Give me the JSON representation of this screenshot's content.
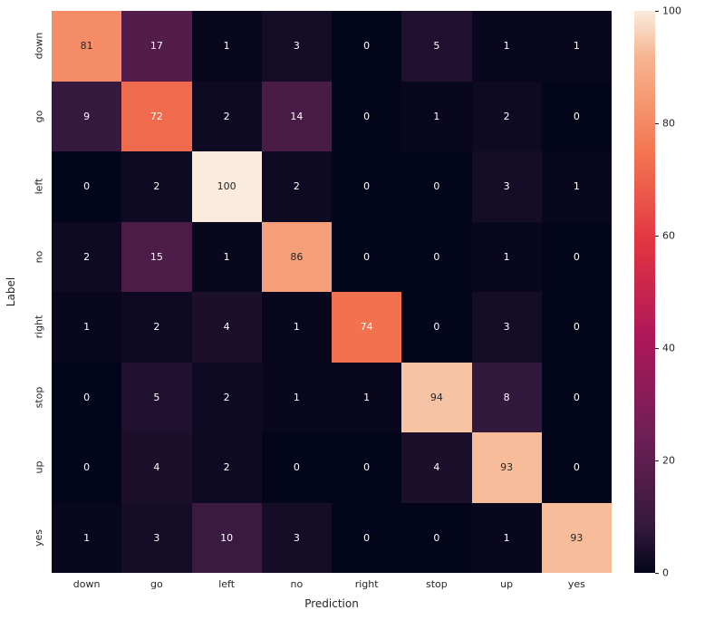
{
  "chart_data": {
    "type": "heatmap",
    "title": "",
    "xlabel": "Prediction",
    "ylabel": "Label",
    "categories_x": [
      "down",
      "go",
      "left",
      "no",
      "right",
      "stop",
      "up",
      "yes"
    ],
    "categories_y": [
      "down",
      "go",
      "left",
      "no",
      "right",
      "stop",
      "up",
      "yes"
    ],
    "values": [
      [
        81,
        17,
        1,
        3,
        0,
        5,
        1,
        1
      ],
      [
        9,
        72,
        2,
        14,
        0,
        1,
        2,
        0
      ],
      [
        0,
        2,
        100,
        2,
        0,
        0,
        3,
        1
      ],
      [
        2,
        15,
        1,
        86,
        0,
        0,
        1,
        0
      ],
      [
        1,
        2,
        4,
        1,
        74,
        0,
        3,
        0
      ],
      [
        0,
        5,
        2,
        1,
        1,
        94,
        8,
        0
      ],
      [
        0,
        4,
        2,
        0,
        0,
        4,
        93,
        0
      ],
      [
        1,
        3,
        10,
        3,
        0,
        0,
        1,
        93
      ]
    ],
    "vmin": 0,
    "vmax": 100,
    "colormap": "rocket",
    "colormap_stops": [
      [
        0.0,
        "#03051a"
      ],
      [
        0.083,
        "#35193e"
      ],
      [
        0.25,
        "#701f57"
      ],
      [
        0.417,
        "#ad1759"
      ],
      [
        0.583,
        "#e13342"
      ],
      [
        0.75,
        "#f37651"
      ],
      [
        0.917,
        "#f6b48f"
      ],
      [
        1.0,
        "#faebdd"
      ]
    ],
    "annot_text_dark": "#262626",
    "annot_text_light": "#ffffff",
    "colorbar_ticks": [
      0,
      20,
      40,
      60,
      80,
      100
    ],
    "legend_position": "right",
    "grid": false
  }
}
